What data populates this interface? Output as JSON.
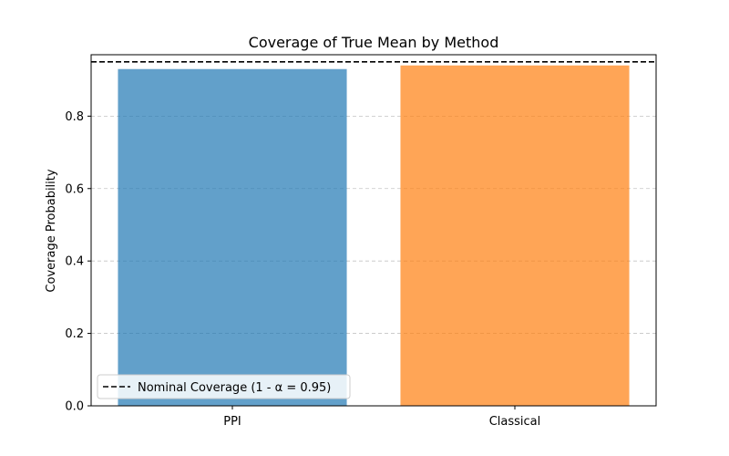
{
  "chart_data": {
    "type": "bar",
    "title": "Coverage of True Mean by Method",
    "xlabel": "",
    "ylabel": "Coverage Probability",
    "categories": [
      "PPI",
      "Classical"
    ],
    "values": [
      0.93,
      0.94
    ],
    "bar_colors": [
      "#1f77b4",
      "#ff7f0e"
    ],
    "bar_alpha": 0.7,
    "ylim": [
      0,
      0.9696
    ],
    "yticks": [
      0.0,
      0.2,
      0.4,
      0.6,
      0.8
    ],
    "ytick_labels": [
      "0.0",
      "0.2",
      "0.4",
      "0.6",
      "0.8"
    ],
    "grid": {
      "axis": "y",
      "style": "dashed"
    },
    "reference_line": {
      "value": 0.95,
      "style": "dashed",
      "color": "#000000",
      "label": "Nominal Coverage (1 - α = 0.95)"
    },
    "legend": {
      "placement": "lower-left"
    }
  }
}
